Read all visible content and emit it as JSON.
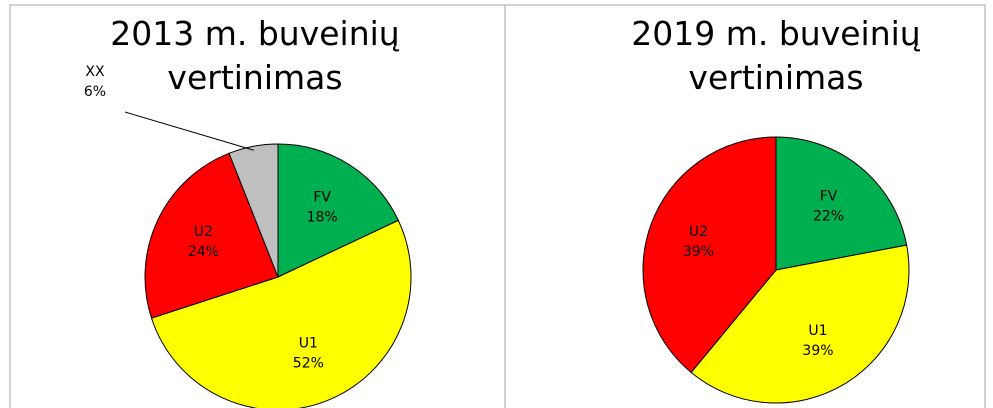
{
  "chart_data": [
    {
      "type": "pie",
      "title": "2013 m. buveinių vertinimas",
      "categories": [
        "FV",
        "U1",
        "U2",
        "XX"
      ],
      "values": [
        18,
        52,
        24,
        6
      ],
      "value_labels": [
        "18%",
        "52%",
        "24%",
        "6%"
      ],
      "colors": [
        "#00b050",
        "#ffff00",
        "#ff0000",
        "#bfbfbf"
      ]
    },
    {
      "type": "pie",
      "title": "2019 m. buveinių vertinimas",
      "categories": [
        "FV",
        "U1",
        "U2"
      ],
      "values": [
        22,
        39,
        39
      ],
      "value_labels": [
        "22%",
        "39%",
        "39%"
      ],
      "colors": [
        "#00b050",
        "#ffff00",
        "#ff0000"
      ]
    }
  ]
}
